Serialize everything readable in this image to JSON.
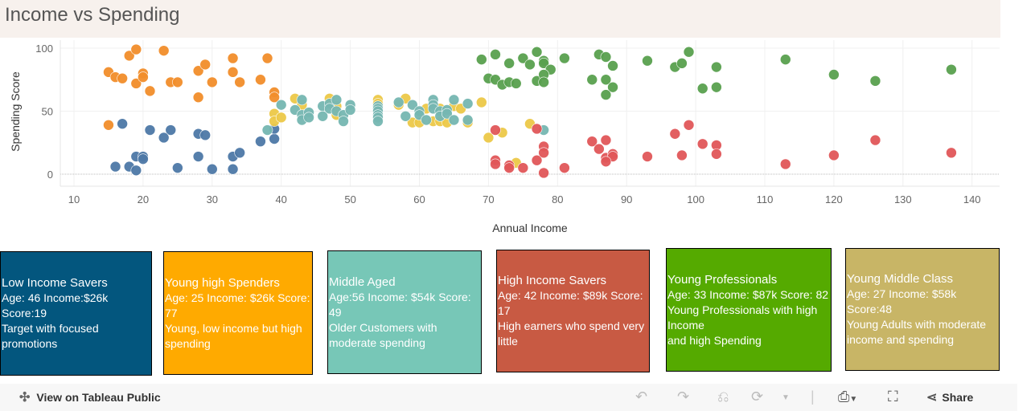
{
  "title": "Income vs Spending",
  "colors": {
    "low_income_savers": "#4e79a7",
    "young_high_spenders": "#f28e2b",
    "middle_aged": "#76b7b2",
    "high_income_savers": "#e15759",
    "young_professionals": "#59a14f",
    "young_middle_class": "#edc948"
  },
  "chart_data": {
    "type": "scatter",
    "xlabel": "Annual Income",
    "ylabel": "Spending Score",
    "xlim": [
      8,
      141
    ],
    "ylim": [
      -10,
      104
    ],
    "xticks": [
      10,
      20,
      30,
      40,
      50,
      60,
      70,
      80,
      90,
      100,
      110,
      120,
      130,
      140
    ],
    "yticks": [
      0,
      50,
      100
    ],
    "grid": true,
    "series": [
      {
        "name": "Young high Spenders",
        "color": "#f28e2b",
        "points": [
          [
            15,
            81
          ],
          [
            16,
            77
          ],
          [
            17,
            76
          ],
          [
            18,
            94
          ],
          [
            19,
            99
          ],
          [
            19,
            72
          ],
          [
            20,
            80
          ],
          [
            20,
            77
          ],
          [
            21,
            66
          ],
          [
            23,
            98
          ],
          [
            24,
            73
          ],
          [
            25,
            73
          ],
          [
            28,
            82
          ],
          [
            28,
            61
          ],
          [
            29,
            87
          ],
          [
            30,
            73
          ],
          [
            33,
            92
          ],
          [
            33,
            81
          ],
          [
            34,
            73
          ],
          [
            37,
            75
          ],
          [
            38,
            92
          ],
          [
            39,
            65
          ],
          [
            39,
            61
          ],
          [
            15,
            39
          ]
        ]
      },
      {
        "name": "Low Income Savers",
        "color": "#4e79a7",
        "points": [
          [
            17,
            40
          ],
          [
            21,
            35
          ],
          [
            24,
            35
          ],
          [
            23,
            29
          ],
          [
            28,
            32
          ],
          [
            29,
            31
          ],
          [
            19,
            14
          ],
          [
            20,
            14
          ],
          [
            20,
            12
          ],
          [
            16,
            6
          ],
          [
            18,
            6
          ],
          [
            19,
            3
          ],
          [
            25,
            5
          ],
          [
            30,
            4
          ],
          [
            33,
            4
          ],
          [
            28,
            14
          ],
          [
            33,
            14
          ],
          [
            34,
            17
          ],
          [
            37,
            26
          ],
          [
            39,
            28
          ],
          [
            39,
            36
          ]
        ]
      },
      {
        "name": "Young Middle Class",
        "color": "#edc948",
        "points": [
          [
            39,
            48
          ],
          [
            39,
            42
          ],
          [
            40,
            45
          ],
          [
            42,
            60
          ],
          [
            43,
            55
          ],
          [
            47,
            60
          ],
          [
            48,
            54
          ],
          [
            48,
            47
          ],
          [
            54,
            59
          ],
          [
            54,
            56
          ],
          [
            57,
            55
          ],
          [
            58,
            60
          ],
          [
            59,
            41
          ],
          [
            60,
            41
          ],
          [
            61,
            52
          ],
          [
            62,
            42
          ],
          [
            63,
            52
          ],
          [
            63,
            42
          ],
          [
            64,
            41
          ],
          [
            65,
            54
          ],
          [
            66,
            52
          ],
          [
            67,
            41
          ],
          [
            69,
            57
          ],
          [
            70,
            29
          ],
          [
            72,
            33
          ],
          [
            76,
            40
          ],
          [
            74,
            9
          ]
        ]
      },
      {
        "name": "Middle Aged",
        "color": "#76b7b2",
        "points": [
          [
            38,
            35
          ],
          [
            40,
            55
          ],
          [
            42,
            51
          ],
          [
            43,
            59
          ],
          [
            43,
            47
          ],
          [
            43,
            43
          ],
          [
            44,
            49
          ],
          [
            44,
            45
          ],
          [
            46,
            54
          ],
          [
            46,
            46
          ],
          [
            47,
            56
          ],
          [
            47,
            52
          ],
          [
            48,
            59
          ],
          [
            48,
            50
          ],
          [
            49,
            47
          ],
          [
            49,
            42
          ],
          [
            50,
            55
          ],
          [
            50,
            51
          ],
          [
            54,
            54
          ],
          [
            54,
            52
          ],
          [
            54,
            50
          ],
          [
            54,
            47
          ],
          [
            54,
            45
          ],
          [
            54,
            42
          ],
          [
            57,
            57
          ],
          [
            58,
            46
          ],
          [
            59,
            55
          ],
          [
            60,
            50
          ],
          [
            60,
            47
          ],
          [
            61,
            43
          ],
          [
            62,
            59
          ],
          [
            62,
            55
          ],
          [
            62,
            52
          ],
          [
            63,
            50
          ],
          [
            63,
            46
          ],
          [
            64,
            51
          ],
          [
            64,
            48
          ],
          [
            65,
            59
          ],
          [
            65,
            43
          ],
          [
            67,
            56
          ],
          [
            67,
            43
          ],
          [
            78,
            35
          ]
        ]
      },
      {
        "name": "High Income Savers",
        "color": "#e15759",
        "points": [
          [
            71,
            35
          ],
          [
            77,
            36
          ],
          [
            71,
            11
          ],
          [
            71,
            8
          ],
          [
            73,
            7
          ],
          [
            73,
            5
          ],
          [
            75,
            5
          ],
          [
            77,
            11
          ],
          [
            78,
            22
          ],
          [
            78,
            17
          ],
          [
            78,
            1
          ],
          [
            81,
            5
          ],
          [
            85,
            26
          ],
          [
            87,
            27
          ],
          [
            86,
            20
          ],
          [
            87,
            13
          ],
          [
            88,
            16
          ],
          [
            88,
            14
          ],
          [
            87,
            10
          ],
          [
            93,
            14
          ],
          [
            97,
            32
          ],
          [
            99,
            39
          ],
          [
            98,
            15
          ],
          [
            101,
            24
          ],
          [
            103,
            23
          ],
          [
            103,
            16
          ],
          [
            113,
            8
          ],
          [
            120,
            15
          ],
          [
            126,
            27
          ],
          [
            137,
            17
          ]
        ]
      },
      {
        "name": "Young Professionals",
        "color": "#59a14f",
        "points": [
          [
            69,
            91
          ],
          [
            71,
            95
          ],
          [
            73,
            88
          ],
          [
            75,
            92
          ],
          [
            76,
            87
          ],
          [
            77,
            97
          ],
          [
            78,
            90
          ],
          [
            78,
            88
          ],
          [
            79,
            83
          ],
          [
            81,
            92
          ],
          [
            70,
            76
          ],
          [
            71,
            75
          ],
          [
            72,
            71
          ],
          [
            73,
            73
          ],
          [
            74,
            72
          ],
          [
            77,
            74
          ],
          [
            78,
            79
          ],
          [
            78,
            73
          ],
          [
            86,
            95
          ],
          [
            87,
            93
          ],
          [
            88,
            86
          ],
          [
            85,
            75
          ],
          [
            87,
            75
          ],
          [
            88,
            69
          ],
          [
            87,
            63
          ],
          [
            93,
            90
          ],
          [
            97,
            85
          ],
          [
            98,
            88
          ],
          [
            99,
            97
          ],
          [
            101,
            68
          ],
          [
            103,
            85
          ],
          [
            103,
            69
          ],
          [
            113,
            91
          ],
          [
            120,
            79
          ],
          [
            126,
            74
          ],
          [
            137,
            83
          ]
        ]
      }
    ]
  },
  "cards": [
    {
      "title": "Low Income Savers",
      "lines": [
        "Age: 46   Income:$26k",
        "Score:19",
        "Target with focused promotions"
      ],
      "color": "#03567e"
    },
    {
      "title": "Young high Spenders",
      "lines": [
        "Age: 25  Income: $26k Score: 77",
        "Young, low income but high spending"
      ],
      "color": "#ffaa00"
    },
    {
      "title": "Middle Aged",
      "lines": [
        "Age:56 Income: $54k Score: 49",
        "Older Customers with moderate spending"
      ],
      "color": "#77c7b7"
    },
    {
      "title": "High Income Savers",
      "lines": [
        "Age: 42 Income: $89k Score: 17",
        "High earners who spend very little"
      ],
      "color": "#c85a43"
    },
    {
      "title": "Young Professionals",
      "lines": [
        "Age: 33 Income: $87k Score: 82",
        "Young Professionals with high Income",
        "and high Spending"
      ],
      "color": "#55aa00"
    },
    {
      "title": "Young Middle Class",
      "lines": [
        "Age: 27 Income: $58k",
        "Score:48",
        "Young Adults with moderate income and spending"
      ],
      "color": "#c8b566"
    }
  ],
  "toolbar": {
    "view_label": "View on Tableau Public",
    "share_label": "Share"
  }
}
